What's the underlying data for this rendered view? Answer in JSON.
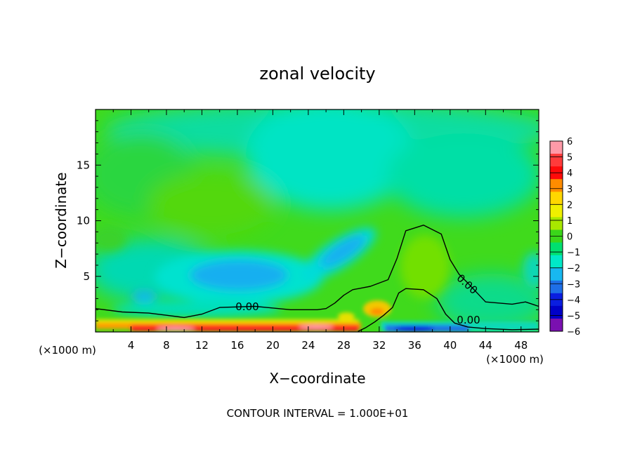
{
  "chart_data": {
    "type": "heatmap",
    "title": "zonal velocity",
    "xlabel": "X−coordinate",
    "ylabel": "Z−coordinate",
    "x_unit_left": "(×1000 m)",
    "x_unit_right": "(×1000 m)",
    "xlim": [
      0,
      50
    ],
    "ylim": [
      0,
      20
    ],
    "xticks": [
      "4",
      "8",
      "12",
      "16",
      "20",
      "24",
      "28",
      "32",
      "36",
      "40",
      "44",
      "48"
    ],
    "xtick_values": [
      4,
      8,
      12,
      16,
      20,
      24,
      28,
      32,
      36,
      40,
      44,
      48
    ],
    "yticks": [
      "5",
      "10",
      "15"
    ],
    "ytick_values": [
      5,
      10,
      15
    ],
    "colorbar": {
      "labels": [
        "6",
        "5",
        "4",
        "3",
        "2",
        "1",
        "0",
        "−1",
        "−2",
        "−3",
        "−4",
        "−5",
        "−6"
      ],
      "values": [
        6,
        5,
        4,
        3,
        2,
        1,
        0,
        -1,
        -2,
        -3,
        -4,
        -5,
        -6
      ],
      "colors": [
        "#ff9aa8",
        "#ff3b3b",
        "#ff0a0a",
        "#ff8c00",
        "#ffd700",
        "#f0f000",
        "#a8e800",
        "#3ad61a",
        "#00e070",
        "#00e8c8",
        "#18b8f0",
        "#1e6fe8",
        "#0a1ee0",
        "#0000c8",
        "#7a10b0"
      ]
    },
    "contour_label": "0.00",
    "footer": "CONTOUR INTERVAL = 1.000E+01",
    "contours": [
      {
        "label": "0.00",
        "points": [
          [
            0,
            2.1
          ],
          [
            3,
            1.8
          ],
          [
            6,
            1.7
          ],
          [
            8,
            1.5
          ],
          [
            10,
            1.3
          ],
          [
            12,
            1.6
          ],
          [
            14,
            2.2
          ],
          [
            18,
            2.3
          ],
          [
            22,
            2.0
          ],
          [
            25,
            2.0
          ],
          [
            26,
            2.1
          ],
          [
            27,
            2.6
          ],
          [
            28,
            3.3
          ],
          [
            29,
            3.8
          ],
          [
            31,
            4.1
          ],
          [
            33,
            4.7
          ],
          [
            34,
            6.6
          ],
          [
            35,
            9.1
          ],
          [
            37,
            9.6
          ],
          [
            39,
            8.8
          ],
          [
            40,
            6.5
          ],
          [
            41,
            5.2
          ],
          [
            42,
            4.4
          ],
          [
            44,
            2.7
          ],
          [
            47,
            2.5
          ],
          [
            48.5,
            2.7
          ],
          [
            50,
            2.3
          ]
        ]
      },
      {
        "label": "0.00",
        "points": [
          [
            29.6,
            0.05
          ],
          [
            30.5,
            0.4
          ],
          [
            31.5,
            0.9
          ],
          [
            32.5,
            1.5
          ],
          [
            33.5,
            2.2
          ],
          [
            34.2,
            3.5
          ],
          [
            35,
            3.9
          ],
          [
            37,
            3.8
          ],
          [
            38.5,
            3.0
          ],
          [
            39.5,
            1.6
          ],
          [
            40.5,
            0.8
          ],
          [
            42,
            0.45
          ],
          [
            44,
            0.3
          ],
          [
            47,
            0.2
          ],
          [
            50,
            0.25
          ]
        ]
      }
    ]
  }
}
